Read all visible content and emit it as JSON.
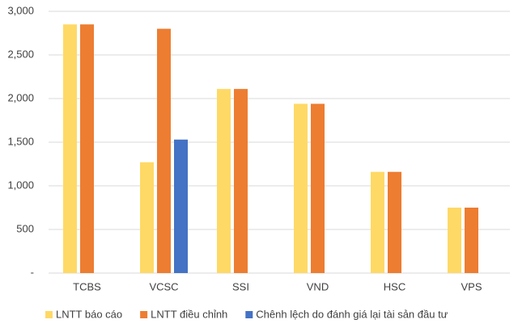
{
  "chart_data": {
    "type": "bar",
    "categories": [
      "TCBS",
      "VCSC",
      "SSI",
      "VND",
      "HSC",
      "VPS"
    ],
    "series": [
      {
        "name": "LNTT báo cáo",
        "color": "#ffd966",
        "values": [
          2850,
          1270,
          2110,
          1940,
          1160,
          750
        ]
      },
      {
        "name": "LNTT điều chỉnh",
        "color": "#ed7d31",
        "values": [
          2850,
          2800,
          2110,
          1940,
          1160,
          750
        ]
      },
      {
        "name": "Chênh lệch do đánh giá lại tài sản đầu tư",
        "color": "#4472c4",
        "values": [
          null,
          1530,
          null,
          null,
          null,
          null
        ]
      }
    ],
    "ylim": [
      0,
      3000
    ],
    "yticks": [
      {
        "value": 0,
        "label": "-"
      },
      {
        "value": 500,
        "label": "500"
      },
      {
        "value": 1000,
        "label": "1,000"
      },
      {
        "value": 1500,
        "label": "1,500"
      },
      {
        "value": 2000,
        "label": "2,000"
      },
      {
        "value": 2500,
        "label": "2,500"
      },
      {
        "value": 3000,
        "label": "3,000"
      }
    ],
    "grid": true
  }
}
